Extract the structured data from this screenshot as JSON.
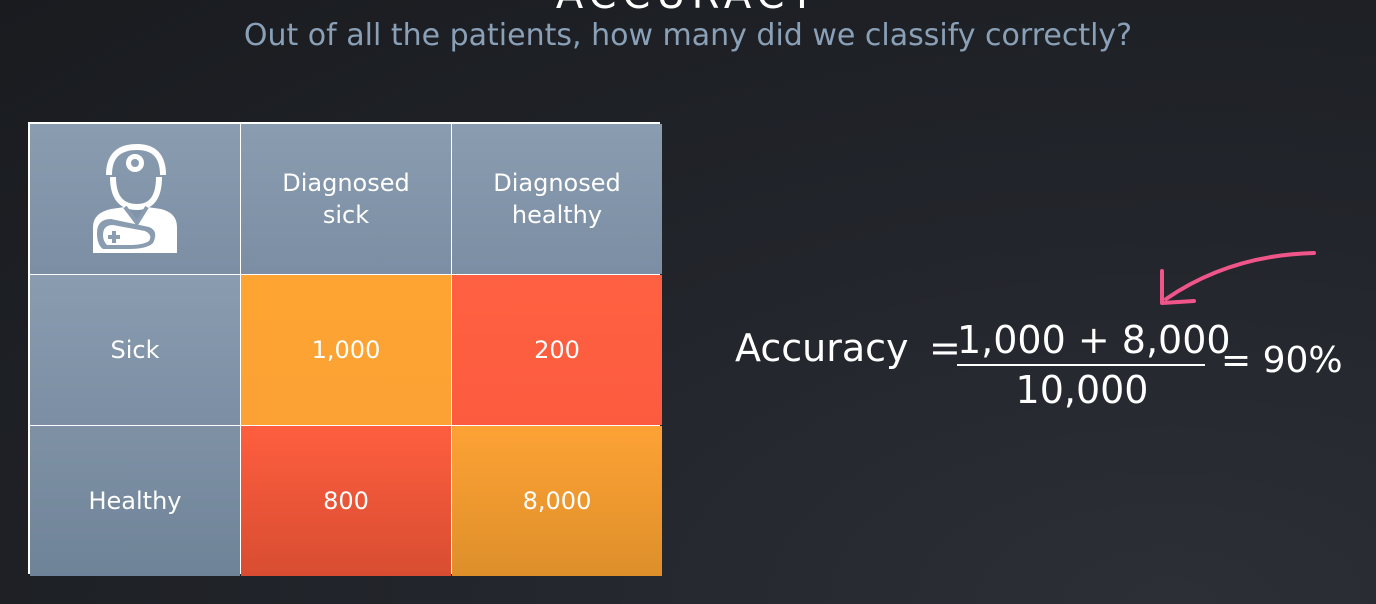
{
  "slide": {
    "title": "ACCURACY",
    "subtitle": "Out of all the patients, how many did we classify correctly?"
  },
  "matrix": {
    "corner_icon": "doctor-icon",
    "column_headers": [
      "Diagnosed\nsick",
      "Diagnosed\nhealthy"
    ],
    "row_headers": [
      "Sick",
      "Healthy"
    ],
    "cells": [
      [
        "1,000",
        "200"
      ],
      [
        "800",
        "8,000"
      ]
    ],
    "colors": {
      "header": "#8a9cb0",
      "correct": "#fda433",
      "incorrect": "#fe6141",
      "border": "#ffffff"
    }
  },
  "formula": {
    "label": "Accuracy",
    "equals": "=",
    "numerator": "1,000 + 8,000",
    "denominator": "10,000",
    "result": "= 90%",
    "arrow_color": "#f0558a"
  }
}
